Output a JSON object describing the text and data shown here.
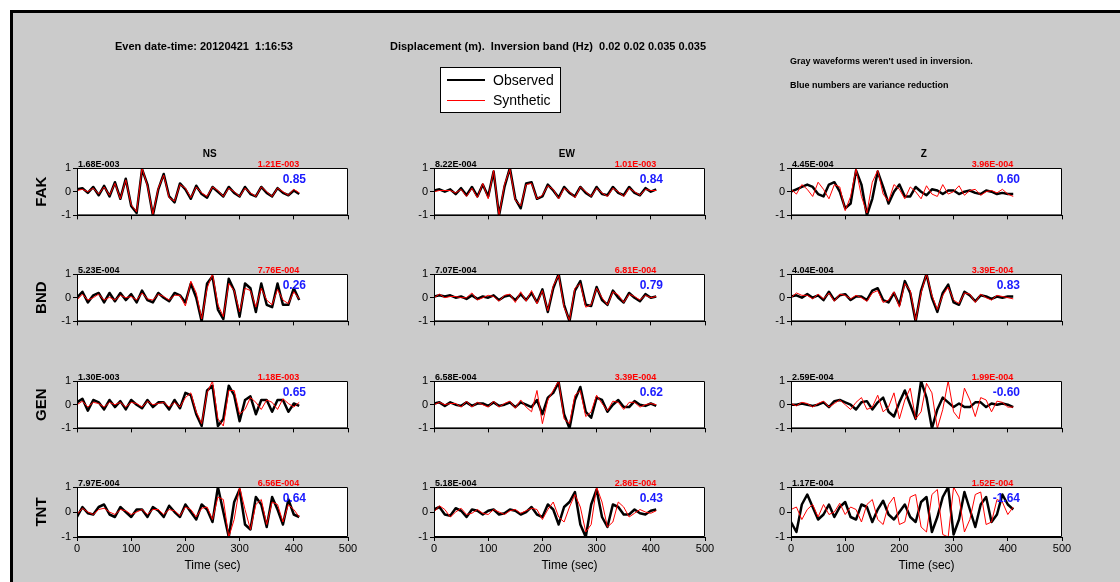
{
  "chart_data": [
    {
      "type": "other",
      "title": "Even date-time: 20120421  1:16:53",
      "subtitle": "Displacement (m).  Inversion band (Hz)  0.02 0.02 0.035 0.035",
      "annotations": [
        "Gray waveforms weren't used in inversion.",
        "Blue numbers are variance reduction"
      ]
    },
    {
      "type": "line",
      "title": "NS",
      "ylabel": "FAK",
      "legend": "top",
      "tick_labels": "y",
      "xlim": [
        0,
        500
      ],
      "ylim": [
        -1,
        1
      ],
      "xticks": [
        0,
        100,
        200,
        300,
        400,
        500
      ],
      "yticks": [
        -1,
        0,
        1
      ],
      "annotations": [
        "1.68E-003",
        "1.21E-003",
        "0.85"
      ],
      "x": [
        0,
        10,
        20,
        30,
        40,
        50,
        60,
        70,
        80,
        90,
        100,
        110,
        120,
        130,
        140,
        150,
        160,
        170,
        180,
        190,
        200,
        210,
        220,
        230,
        240,
        250,
        260,
        270,
        280,
        290,
        300,
        310,
        320,
        330,
        340,
        350,
        360,
        370,
        380,
        390,
        400,
        410
      ],
      "series": [
        {
          "name": "Observed",
          "color": "#000000",
          "values": [
            0.1,
            0.15,
            -0.05,
            0.2,
            -0.15,
            0.25,
            -0.2,
            0.4,
            -0.3,
            0.55,
            -0.6,
            -0.9,
            0.95,
            0.3,
            -1,
            0.1,
            0.75,
            -0.2,
            -0.45,
            0.35,
            0.1,
            -0.3,
            0.25,
            -0.1,
            -0.25,
            0.2,
            0,
            -0.2,
            0.2,
            -0.05,
            -0.2,
            0.2,
            -0.1,
            -0.2,
            0.2,
            -0.05,
            -0.2,
            0.15,
            -0.05,
            -0.15,
            0.05,
            -0.1
          ]
        },
        {
          "name": "Synthetic",
          "color": "#ff0000",
          "values": [
            0.05,
            0.1,
            0,
            0.15,
            -0.1,
            0.2,
            -0.15,
            0.35,
            -0.3,
            0.5,
            -0.55,
            -0.85,
            1,
            0.25,
            -0.95,
            0.15,
            0.7,
            -0.25,
            -0.4,
            0.3,
            0.15,
            -0.25,
            0.2,
            -0.05,
            -0.2,
            0.2,
            0.05,
            -0.2,
            0.15,
            0,
            -0.2,
            0.15,
            -0.05,
            -0.2,
            0.2,
            0,
            -0.2,
            0.15,
            0,
            -0.15,
            0.1,
            -0.05
          ]
        }
      ]
    },
    {
      "type": "line",
      "title": "EW",
      "tick_labels": "y",
      "xlim": [
        0,
        500
      ],
      "ylim": [
        -1,
        1
      ],
      "xticks": [
        0,
        100,
        200,
        300,
        400,
        500
      ],
      "yticks": [
        -1,
        0,
        1
      ],
      "annotations": [
        "8.22E-004",
        "1.01E-003",
        "0.84"
      ],
      "x": [
        0,
        10,
        20,
        30,
        40,
        50,
        60,
        70,
        80,
        90,
        100,
        110,
        120,
        130,
        140,
        150,
        160,
        170,
        180,
        190,
        200,
        210,
        220,
        230,
        240,
        250,
        260,
        270,
        280,
        290,
        300,
        310,
        320,
        330,
        340,
        350,
        360,
        370,
        380,
        390,
        400,
        410
      ],
      "series": [
        {
          "color": "#000000",
          "values": [
            0.05,
            0.1,
            0,
            0.1,
            -0.1,
            0.15,
            -0.15,
            0.2,
            -0.2,
            0.3,
            -0.2,
            0.85,
            -1,
            0.2,
            1,
            -0.3,
            -0.7,
            0.35,
            0.4,
            -0.3,
            -0.2,
            0.3,
            0.05,
            -0.25,
            0.2,
            -0.05,
            -0.2,
            0.2,
            -0.05,
            -0.2,
            0.2,
            -0.1,
            -0.15,
            0.2,
            -0.05,
            -0.15,
            0.2,
            -0.05,
            -0.15,
            0.15,
            0,
            0.1
          ]
        },
        {
          "color": "#ff0000",
          "values": [
            0,
            0.05,
            0.05,
            0.05,
            -0.05,
            0.1,
            -0.2,
            0.15,
            -0.25,
            0.35,
            -0.3,
            0.9,
            -1,
            0.3,
            0.95,
            -0.35,
            -0.6,
            0.3,
            0.35,
            -0.3,
            -0.15,
            0.25,
            0.1,
            -0.3,
            0.15,
            0,
            -0.25,
            0.2,
            0,
            -0.2,
            0.15,
            -0.05,
            -0.2,
            0.15,
            0,
            -0.2,
            0.15,
            0,
            -0.15,
            0.1,
            0.05,
            0.05
          ]
        }
      ]
    },
    {
      "type": "line",
      "title": "Z",
      "tick_labels": "y",
      "xlim": [
        0,
        500
      ],
      "ylim": [
        -1,
        1
      ],
      "xticks": [
        0,
        100,
        200,
        300,
        400,
        500
      ],
      "yticks": [
        -1,
        0,
        1
      ],
      "annotations": [
        "4.45E-004",
        "3.96E-004",
        "0.60"
      ],
      "x": [
        0,
        10,
        20,
        30,
        40,
        50,
        60,
        70,
        80,
        90,
        100,
        110,
        120,
        130,
        140,
        150,
        160,
        170,
        180,
        190,
        200,
        210,
        220,
        230,
        240,
        250,
        260,
        270,
        280,
        290,
        300,
        310,
        320,
        330,
        340,
        350,
        360,
        370,
        380,
        390,
        400,
        410
      ],
      "series": [
        {
          "color": "#000000",
          "values": [
            0,
            0.1,
            0.2,
            0.3,
            0.2,
            -0.1,
            -0.2,
            0.3,
            0.4,
            0,
            -0.7,
            -0.5,
            0.9,
            0.3,
            -1,
            -0.3,
            0.85,
            0.2,
            -0.5,
            0,
            0.3,
            -0.2,
            -0.2,
            0.2,
            0,
            -0.15,
            0.1,
            0.05,
            -0.1,
            0.05,
            0.05,
            -0.1,
            0,
            0.05,
            -0.05,
            -0.1,
            0.05,
            0,
            -0.1,
            -0.05,
            -0.1,
            -0.1
          ]
        },
        {
          "color": "#ff0000",
          "values": [
            0.1,
            -0.1,
            0.3,
            0.1,
            -0.2,
            0.4,
            0.1,
            -0.3,
            0.3,
            0.2,
            -0.8,
            -0.2,
            0.95,
            -0.2,
            -0.9,
            0.4,
            0.9,
            -0.1,
            -0.4,
            0.3,
            0.1,
            -0.3,
            0.2,
            0,
            -0.3,
            0.25,
            -0.1,
            -0.2,
            0.3,
            -0.1,
            0,
            0.25,
            -0.15,
            0.05,
            0.1,
            -0.15,
            0,
            0.05,
            -0.05,
            0.1,
            -0.1,
            -0.2
          ]
        }
      ]
    },
    {
      "type": "line",
      "ylabel": "BND",
      "tick_labels": "y",
      "xlim": [
        0,
        500
      ],
      "ylim": [
        -1,
        1
      ],
      "xticks": [
        0,
        100,
        200,
        300,
        400,
        500
      ],
      "yticks": [
        -1,
        0,
        1
      ],
      "annotations": [
        "5.23E-004",
        "7.76E-004",
        "0.26"
      ],
      "x": [
        0,
        10,
        20,
        30,
        40,
        50,
        60,
        70,
        80,
        90,
        100,
        110,
        120,
        130,
        140,
        150,
        160,
        170,
        180,
        190,
        200,
        210,
        220,
        230,
        240,
        250,
        260,
        270,
        280,
        290,
        300,
        310,
        320,
        330,
        340,
        350,
        360,
        370,
        380,
        390,
        400,
        410
      ],
      "series": [
        {
          "color": "#000000",
          "values": [
            0,
            0.25,
            -0.2,
            0.1,
            0.2,
            -0.2,
            0.2,
            -0.15,
            0.2,
            -0.1,
            0.15,
            -0.2,
            0.3,
            -0.1,
            -0.2,
            0.2,
            0,
            -0.15,
            0.2,
            0.1,
            -0.2,
            0.6,
            0,
            -1,
            0.6,
            0.9,
            -0.5,
            -0.9,
            0.8,
            0.3,
            -0.8,
            0.6,
            0.4,
            -0.6,
            0.6,
            -0.3,
            -0.4,
            0.6,
            -0.3,
            -0.3,
            0.4,
            -0.1
          ]
        },
        {
          "color": "#ff0000",
          "values": [
            -0.1,
            0.15,
            -0.1,
            0,
            0.15,
            -0.1,
            0.02,
            -0.1,
            0.1,
            0,
            0.05,
            -0.1,
            0.2,
            -0.05,
            -0.1,
            0.15,
            0.05,
            -0.1,
            0.1,
            0.1,
            -0.35,
            0.7,
            0.2,
            -0.9,
            0.4,
            1,
            -0.3,
            -0.8,
            0.6,
            0.3,
            -0.6,
            0.4,
            0.3,
            -0.4,
            0.4,
            -0.1,
            -0.3,
            0.35,
            -0.1,
            -0.25,
            0.25,
            -0.05
          ]
        }
      ]
    },
    {
      "type": "line",
      "tick_labels": "y",
      "xlim": [
        0,
        500
      ],
      "ylim": [
        -1,
        1
      ],
      "xticks": [
        0,
        100,
        200,
        300,
        400,
        500
      ],
      "yticks": [
        -1,
        0,
        1
      ],
      "annotations": [
        "7.07E-004",
        "6.81E-004",
        "0.79"
      ],
      "x": [
        0,
        10,
        20,
        30,
        40,
        50,
        60,
        70,
        80,
        90,
        100,
        110,
        120,
        130,
        140,
        150,
        160,
        170,
        180,
        190,
        200,
        210,
        220,
        230,
        240,
        250,
        260,
        270,
        280,
        290,
        300,
        310,
        320,
        330,
        340,
        350,
        360,
        370,
        380,
        390,
        400,
        410
      ],
      "series": [
        {
          "color": "#000000",
          "values": [
            0.05,
            0.1,
            0.05,
            0.1,
            0,
            0.05,
            -0.05,
            0.1,
            -0.05,
            0.05,
            0,
            0.1,
            -0.1,
            0.05,
            0.1,
            -0.1,
            0.15,
            -0.1,
            0.2,
            -0.2,
            0.35,
            -0.6,
            0.4,
            1,
            -0.3,
            -1,
            0.3,
            0.7,
            -0.3,
            -0.35,
            0.45,
            -0.1,
            -0.3,
            0.3,
            0,
            -0.2,
            0.2,
            0,
            -0.15,
            0.15,
            0,
            0.05
          ]
        },
        {
          "color": "#ff0000",
          "values": [
            0,
            0.15,
            0,
            0.05,
            0.05,
            0,
            0,
            0.2,
            -0.1,
            0,
            0.1,
            0.05,
            -0.15,
            0.1,
            0.15,
            -0.2,
            0.25,
            -0.15,
            0.3,
            -0.25,
            0.3,
            -0.55,
            0.5,
            0.95,
            -0.4,
            -0.95,
            0.4,
            0.6,
            -0.4,
            -0.3,
            0.4,
            0,
            -0.3,
            0.25,
            0.12,
            -0.2,
            0.15,
            0.05,
            -0.1,
            0.1,
            0,
            0.05
          ]
        }
      ]
    },
    {
      "type": "line",
      "tick_labels": "y",
      "xlim": [
        0,
        500
      ],
      "ylim": [
        -1,
        1
      ],
      "xticks": [
        0,
        100,
        200,
        300,
        400,
        500
      ],
      "yticks": [
        -1,
        0,
        1
      ],
      "annotations": [
        "4.04E-004",
        "3.39E-004",
        "0.83"
      ],
      "x": [
        0,
        10,
        20,
        30,
        40,
        50,
        60,
        70,
        80,
        90,
        100,
        110,
        120,
        130,
        140,
        150,
        160,
        170,
        180,
        190,
        200,
        210,
        220,
        230,
        240,
        250,
        260,
        270,
        280,
        290,
        300,
        310,
        320,
        330,
        340,
        350,
        360,
        370,
        380,
        390,
        400,
        410
      ],
      "series": [
        {
          "color": "#000000",
          "values": [
            0.05,
            0.1,
            0,
            0.15,
            0,
            0.1,
            -0.1,
            0.25,
            -0.1,
            0.1,
            0.15,
            -0.1,
            0.05,
            0.05,
            -0.1,
            0.3,
            0.4,
            -0.1,
            -0.2,
            0.2,
            -0.3,
            0.7,
            0.2,
            -1,
            0.3,
            1,
            0,
            -0.6,
            0.2,
            0.55,
            -0.2,
            -0.3,
            0.25,
            0.1,
            -0.15,
            0.1,
            0.05,
            -0.05,
            0.05,
            0,
            0.05,
            0.05
          ]
        },
        {
          "color": "#ff0000",
          "values": [
            0,
            0.2,
            0.1,
            0.1,
            -0.05,
            0.15,
            -0.05,
            0.2,
            -0.15,
            0.15,
            0.1,
            -0.05,
            0.1,
            0,
            -0.15,
            0.2,
            0.3,
            -0.2,
            -0.1,
            0.25,
            -0.4,
            0.6,
            0.3,
            -0.95,
            0.2,
            1,
            0.1,
            -0.5,
            0.1,
            0.45,
            -0.1,
            -0.25,
            0.2,
            0.15,
            -0.2,
            0.15,
            0,
            -0.1,
            0.1,
            0.05,
            0,
            -0.05
          ]
        }
      ]
    },
    {
      "type": "line",
      "ylabel": "GEN",
      "tick_labels": "y",
      "xlim": [
        0,
        500
      ],
      "ylim": [
        -1,
        1
      ],
      "xticks": [
        0,
        100,
        200,
        300,
        400,
        500
      ],
      "yticks": [
        -1,
        0,
        1
      ],
      "annotations": [
        "1.30E-003",
        "1.18E-003",
        "0.65"
      ],
      "x": [
        0,
        10,
        20,
        30,
        40,
        50,
        60,
        70,
        80,
        90,
        100,
        110,
        120,
        130,
        140,
        150,
        160,
        170,
        180,
        190,
        200,
        210,
        220,
        230,
        240,
        250,
        260,
        270,
        280,
        290,
        300,
        310,
        320,
        330,
        340,
        350,
        360,
        370,
        380,
        390,
        400,
        410
      ],
      "series": [
        {
          "color": "#000000",
          "values": [
            0.1,
            0.25,
            -0.25,
            0.2,
            0.1,
            -0.2,
            0.2,
            -0.1,
            0.15,
            -0.2,
            0.2,
            0,
            -0.15,
            0.2,
            -0.1,
            0.1,
            0.1,
            -0.2,
            0.2,
            -0.15,
            0.5,
            0.4,
            -0.4,
            -0.9,
            0.6,
            0.8,
            -0.9,
            -0.6,
            0.8,
            0.4,
            -0.7,
            0.2,
            0.35,
            -0.4,
            0.2,
            0.2,
            -0.3,
            0.2,
            0.2,
            -0.3,
            0.05,
            -0.05
          ]
        },
        {
          "color": "#ff0000",
          "values": [
            0,
            0.15,
            -0.1,
            0.1,
            0.05,
            -0.1,
            0.1,
            0,
            0.1,
            -0.1,
            0.1,
            0.05,
            -0.1,
            0.15,
            0,
            0.05,
            0.1,
            -0.1,
            0.1,
            -0.1,
            0.3,
            0.5,
            -0.3,
            -0.8,
            0.5,
            1,
            -0.6,
            -0.9,
            0.6,
            0.6,
            -0.4,
            -0.2,
            0.3,
            0.1,
            -0.2,
            0.2,
            0.1,
            -0.2,
            0.25,
            0.05,
            -0.1,
            0.1
          ]
        }
      ]
    },
    {
      "type": "line",
      "tick_labels": "y",
      "xlim": [
        0,
        500
      ],
      "ylim": [
        -1,
        1
      ],
      "xticks": [
        0,
        100,
        200,
        300,
        400,
        500
      ],
      "yticks": [
        -1,
        0,
        1
      ],
      "annotations": [
        "6.58E-004",
        "3.39E-004",
        "0.62"
      ],
      "x": [
        0,
        10,
        20,
        30,
        40,
        50,
        60,
        70,
        80,
        90,
        100,
        110,
        120,
        130,
        140,
        150,
        160,
        170,
        180,
        190,
        200,
        210,
        220,
        230,
        240,
        250,
        260,
        270,
        280,
        290,
        300,
        310,
        320,
        330,
        340,
        350,
        360,
        370,
        380,
        390,
        400,
        410
      ],
      "series": [
        {
          "color": "#000000",
          "values": [
            0.05,
            0.1,
            -0.05,
            0.1,
            0,
            -0.05,
            0.1,
            -0.05,
            0.05,
            0.05,
            -0.05,
            0.1,
            -0.05,
            0,
            0.1,
            -0.1,
            0.1,
            0,
            -0.1,
            0.2,
            -0.4,
            0.3,
            0.5,
            0.95,
            -0.4,
            -1,
            0.2,
            0.75,
            -0.3,
            -0.55,
            0.3,
            0.2,
            -0.3,
            0,
            0.2,
            -0.1,
            -0.1,
            0.15,
            0,
            -0.05,
            0.05,
            -0.05
          ]
        },
        {
          "color": "#ff0000",
          "values": [
            0,
            0.1,
            0,
            0.05,
            0.05,
            -0.1,
            0.15,
            -0.1,
            0.1,
            0,
            -0.1,
            0.15,
            -0.1,
            0.05,
            0.15,
            -0.15,
            0.2,
            -0.1,
            -0.3,
            0.6,
            -0.8,
            0.2,
            0.6,
            1,
            -0.6,
            -0.8,
            0.4,
            0.6,
            -0.5,
            -0.3,
            0.4,
            0.05,
            -0.25,
            0.15,
            0.1,
            -0.2,
            0.1,
            0.1,
            -0.1,
            0,
            0.05,
            0
          ]
        }
      ]
    },
    {
      "type": "line",
      "tick_labels": "y",
      "xlim": [
        0,
        500
      ],
      "ylim": [
        -1,
        1
      ],
      "xticks": [
        0,
        100,
        200,
        300,
        400,
        500
      ],
      "yticks": [
        -1,
        0,
        1
      ],
      "annotations": [
        "2.59E-004",
        "1.99E-004",
        "-0.60"
      ],
      "x": [
        0,
        10,
        20,
        30,
        40,
        50,
        60,
        70,
        80,
        90,
        100,
        110,
        120,
        130,
        140,
        150,
        160,
        170,
        180,
        190,
        200,
        210,
        220,
        230,
        240,
        250,
        260,
        270,
        280,
        290,
        300,
        310,
        320,
        330,
        340,
        350,
        360,
        370,
        380,
        390,
        400,
        410
      ],
      "series": [
        {
          "color": "#000000",
          "values": [
            0,
            0,
            0.05,
            0,
            -0.05,
            0,
            0.1,
            -0.1,
            0.15,
            0.2,
            0.1,
            0,
            -0.2,
            0.1,
            0.15,
            -0.2,
            0.1,
            0.3,
            -0.3,
            -0.5,
            0.1,
            0.6,
            0,
            -0.6,
            1,
            0.3,
            -1,
            -0.2,
            0.3,
            0.1,
            -0.1,
            0.05,
            -0.1,
            -0.1,
            0.1,
            0.1,
            -0.1,
            0.05,
            0,
            0.05,
            0,
            -0.1
          ]
        },
        {
          "color": "#ff0000",
          "values": [
            0.05,
            -0.05,
            0.1,
            0.05,
            -0.1,
            0.05,
            0.15,
            -0.1,
            0.05,
            0.2,
            0,
            -0.2,
            0.1,
            0.3,
            -0.2,
            -0.1,
            0.4,
            -0.3,
            -0.1,
            0.5,
            -0.6,
            0.2,
            0.7,
            -0.6,
            -0.3,
            0.9,
            0.5,
            -1,
            -0.2,
            1,
            -0.3,
            -0.6,
            0.7,
            0.2,
            -0.5,
            0.3,
            0.2,
            -0.3,
            0.15,
            0.1,
            -0.1,
            -0.1
          ]
        }
      ]
    },
    {
      "type": "line",
      "ylabel": "TNT",
      "xlabel": "Time (sec)",
      "xlim": [
        0,
        500
      ],
      "ylim": [
        -1,
        1
      ],
      "xticks": [
        0,
        100,
        200,
        300,
        400,
        500
      ],
      "yticks": [
        -1,
        0,
        1
      ],
      "annotations": [
        "7.97E-004",
        "6.56E-004",
        "0.64"
      ],
      "x": [
        0,
        10,
        20,
        30,
        40,
        50,
        60,
        70,
        80,
        90,
        100,
        110,
        120,
        130,
        140,
        150,
        160,
        170,
        180,
        190,
        200,
        210,
        220,
        230,
        240,
        250,
        260,
        270,
        280,
        290,
        300,
        310,
        320,
        330,
        340,
        350,
        360,
        370,
        380,
        390,
        400,
        410
      ],
      "series": [
        {
          "color": "#000000",
          "values": [
            -0.2,
            0.2,
            -0.05,
            -0.1,
            0.2,
            0.3,
            -0.1,
            -0.2,
            0.2,
            0,
            -0.2,
            0.1,
            0.1,
            -0.2,
            0.2,
            0.05,
            -0.2,
            0.25,
            0,
            -0.2,
            0.3,
            0,
            -0.3,
            0.3,
            0.1,
            -0.4,
            1,
            0,
            -1,
            0.4,
            0.9,
            -0.5,
            -0.7,
            0.6,
            0.3,
            -0.6,
            0.6,
            0.1,
            -0.5,
            0.5,
            -0.1,
            -0.2
          ]
        },
        {
          "color": "#ff0000",
          "values": [
            -0.1,
            0.15,
            0,
            -0.1,
            0.1,
            0.15,
            0,
            -0.1,
            0.1,
            0.05,
            -0.1,
            0,
            0.1,
            -0.1,
            0.1,
            0.1,
            -0.1,
            0.1,
            0.05,
            -0.15,
            0.2,
            0.1,
            -0.2,
            0.15,
            0.2,
            -0.3,
            0.6,
            0.5,
            -1,
            -0.3,
            1,
            0.1,
            -0.7,
            0.3,
            0.5,
            -0.5,
            0.4,
            0.3,
            -0.4,
            0.3,
            0.1,
            -0.2
          ]
        }
      ]
    },
    {
      "type": "line",
      "xlabel": "Time (sec)",
      "xlim": [
        0,
        500
      ],
      "ylim": [
        -1,
        1
      ],
      "xticks": [
        0,
        100,
        200,
        300,
        400,
        500
      ],
      "yticks": [
        -1,
        0,
        1
      ],
      "annotations": [
        "5.18E-004",
        "2.86E-004",
        "0.43"
      ],
      "x": [
        0,
        10,
        20,
        30,
        40,
        50,
        60,
        70,
        80,
        90,
        100,
        110,
        120,
        130,
        140,
        150,
        160,
        170,
        180,
        190,
        200,
        210,
        220,
        230,
        240,
        250,
        260,
        270,
        280,
        290,
        300,
        310,
        320,
        330,
        340,
        350,
        360,
        370,
        380,
        390,
        400,
        410
      ],
      "series": [
        {
          "color": "#000000",
          "values": [
            0.1,
            0.2,
            -0.1,
            -0.15,
            0.15,
            0.05,
            -0.2,
            0.1,
            0.05,
            -0.1,
            0.05,
            0.1,
            -0.1,
            -0.05,
            0.1,
            0.05,
            -0.1,
            0,
            0.2,
            -0.1,
            -0.2,
            0.3,
            0.1,
            -0.5,
            0.2,
            0.4,
            0.8,
            -0.5,
            -1,
            0.3,
            0.9,
            -0.2,
            -0.6,
            0.3,
            0.2,
            -0.1,
            -0.1,
            0.1,
            -0.05,
            -0.1,
            0.05,
            0.1
          ]
        },
        {
          "color": "#ff0000",
          "values": [
            0,
            0.25,
            0.1,
            -0.2,
            0,
            0.15,
            -0.1,
            -0.05,
            0.1,
            -0.05,
            -0.1,
            0.1,
            0,
            -0.1,
            0.05,
            0.1,
            -0.05,
            0.05,
            0.15,
            0.1,
            -0.3,
            0.1,
            0.4,
            -0.2,
            -0.4,
            0.2,
            0.7,
            0.2,
            -0.8,
            -0.5,
            1,
            0.4,
            -0.6,
            -0.4,
            0.4,
            0.2,
            -0.2,
            -0.05,
            0.1,
            0,
            -0.05,
            0.05
          ]
        }
      ]
    },
    {
      "type": "line",
      "xlabel": "Time (sec)",
      "xlim": [
        0,
        500
      ],
      "ylim": [
        -1,
        1
      ],
      "xticks": [
        0,
        100,
        200,
        300,
        400,
        500
      ],
      "yticks": [
        -1,
        0,
        1
      ],
      "annotations": [
        "1.17E-004",
        "1.52E-004",
        "-1.64"
      ],
      "x": [
        0,
        10,
        20,
        30,
        40,
        50,
        60,
        70,
        80,
        90,
        100,
        110,
        120,
        130,
        140,
        150,
        160,
        170,
        180,
        190,
        200,
        210,
        220,
        230,
        240,
        250,
        260,
        270,
        280,
        290,
        300,
        310,
        320,
        330,
        340,
        350,
        360,
        370,
        380,
        390,
        400,
        410
      ],
      "series": [
        {
          "color": "#000000",
          "values": [
            -0.4,
            -0.8,
            0.3,
            0.7,
            0.2,
            -0.3,
            -0.1,
            0.3,
            -0.2,
            0.2,
            0.4,
            -0.2,
            -0.3,
            0.3,
            0.2,
            -0.4,
            0.1,
            0.45,
            -0.1,
            -0.3,
            0,
            0.3,
            -0.2,
            -0.4,
            0.4,
            0.6,
            -0.8,
            -0.2,
            0.6,
            1,
            -0.9,
            -0.3,
            0.8,
            0.1,
            -0.6,
            0.3,
            0.6,
            -0.4,
            -0.1,
            0.7,
            0.3,
            0.1
          ]
        },
        {
          "color": "#ff0000",
          "values": [
            0.1,
            0.2,
            -0.3,
            0.1,
            0.3,
            -0.2,
            0.3,
            -0.1,
            0,
            0.35,
            -0.1,
            0.2,
            0.1,
            -0.4,
            0.3,
            0.5,
            -0.3,
            -0.5,
            0.3,
            0.6,
            -0.5,
            -0.4,
            0.6,
            0.7,
            -0.6,
            -0.8,
            0.7,
            0.9,
            -0.9,
            -1,
            1,
            0.6,
            -0.8,
            -0.3,
            0.7,
            0.8,
            -0.5,
            -0.4,
            0.5,
            0.4,
            -0.1,
            0.2
          ]
        }
      ]
    }
  ]
}
